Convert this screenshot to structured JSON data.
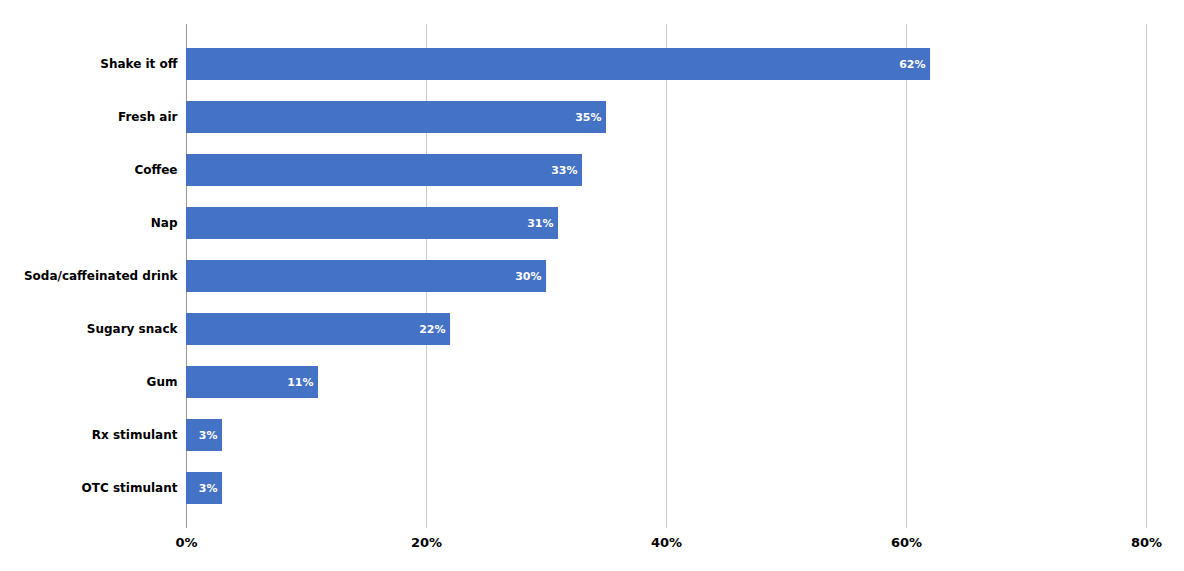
{
  "chart_data": {
    "type": "bar",
    "orientation": "horizontal",
    "categories": [
      "OTC stimulant",
      "Rx stimulant",
      "Gum",
      "Sugary snack",
      "Soda/caffeinated drink",
      "Nap",
      "Coffee",
      "Fresh air",
      "Shake it off"
    ],
    "values": [
      3,
      3,
      11,
      22,
      30,
      31,
      33,
      35,
      62
    ],
    "value_labels": [
      "3%",
      "3%",
      "11%",
      "22%",
      "30%",
      "31%",
      "33%",
      "35%",
      "62%"
    ],
    "data_labels": true,
    "color": "#4472C4",
    "xlim": [
      0,
      80
    ],
    "xticks": [
      {
        "value": 0,
        "label": "0%"
      },
      {
        "value": 20,
        "label": "20%"
      },
      {
        "value": 40,
        "label": "40%"
      },
      {
        "value": 60,
        "label": "60%"
      },
      {
        "value": 80,
        "label": "80%"
      }
    ],
    "grid": true
  }
}
